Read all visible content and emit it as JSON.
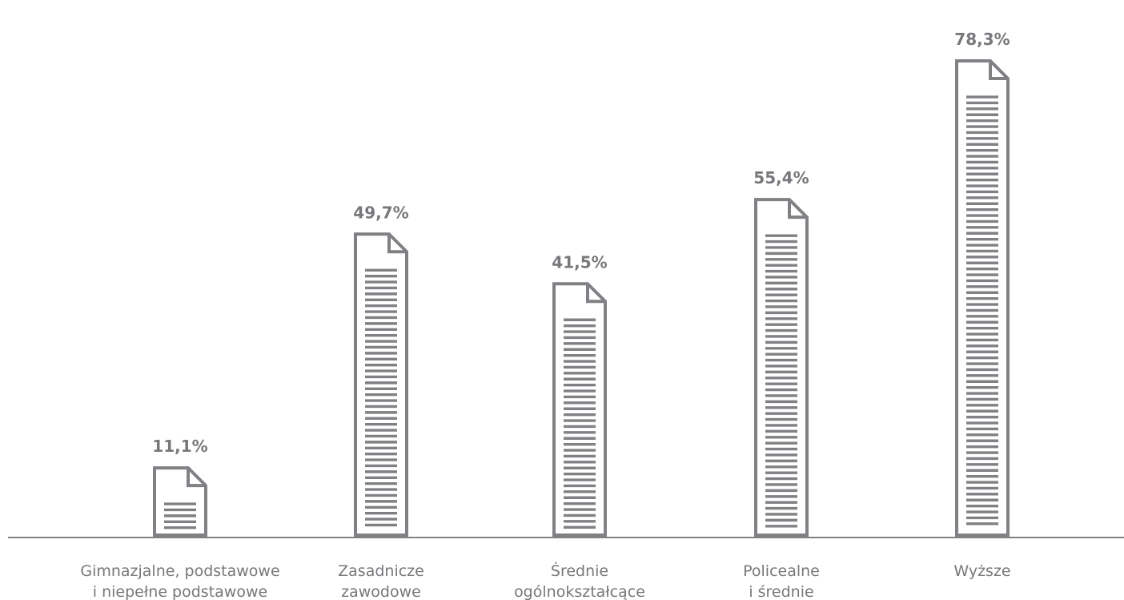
{
  "chart_data": {
    "type": "bar",
    "title": "",
    "xlabel": "",
    "ylabel": "",
    "ylim": [
      0,
      80
    ],
    "grid": false,
    "legend": "none",
    "bar_style": "document-icon",
    "categories": [
      [
        "Gimnazjalne, podstawowe",
        "i niepełne podstawowe"
      ],
      [
        "Zasadnicze",
        "zawodowe"
      ],
      [
        "Średnie",
        "ogólnokształcące"
      ],
      [
        "Policealne",
        "i średnie"
      ],
      [
        "Wyższe"
      ]
    ],
    "values": [
      11.1,
      49.7,
      41.5,
      55.4,
      78.3
    ],
    "value_labels": [
      "11,1%",
      "49,7%",
      "41,5%",
      "55,4%",
      "78,3%"
    ]
  },
  "colors": {
    "bar_stroke": "#808184",
    "text": "#77787b",
    "axis": "#808184"
  }
}
